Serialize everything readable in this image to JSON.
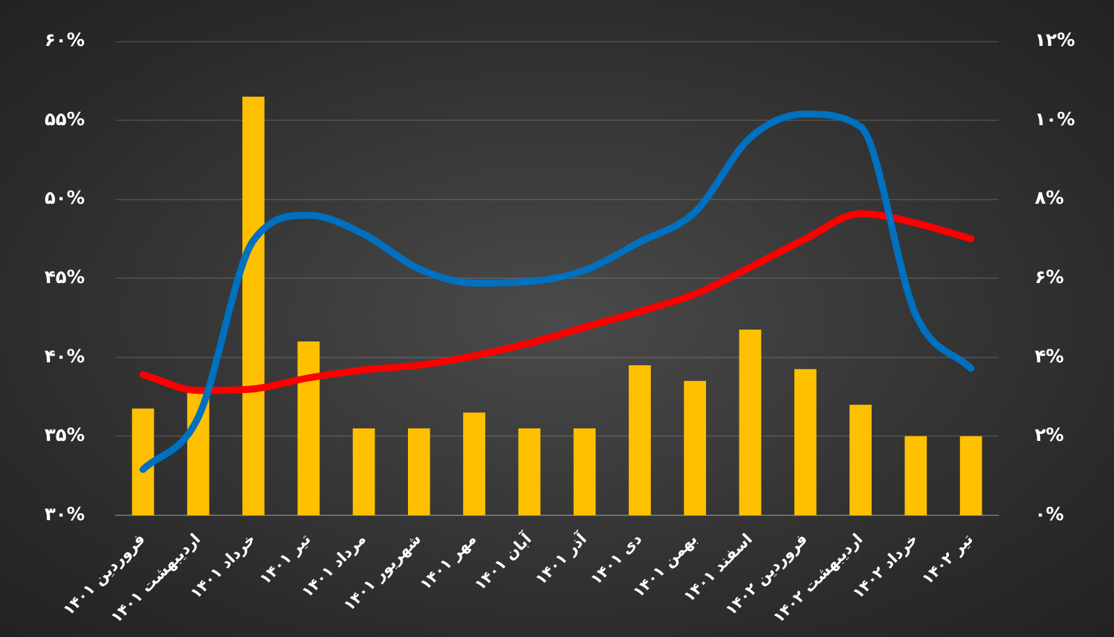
{
  "chart_data": {
    "type": "bar",
    "categories": [
      "فروردین ۱۴۰۱",
      "اردیبهشت ۱۴۰۱",
      "خرداد ۱۴۰۱",
      "تیر ۱۴۰۱",
      "مرداد ۱۴۰۱",
      "شهریور ۱۴۰۱",
      "مهر ۱۴۰۱",
      "آبان ۱۴۰۱",
      "آذر ۱۴۰۱",
      "دی ۱۴۰۱",
      "بهمن ۱۴۰۱",
      "اسفند ۱۴۰۱",
      "فروردین ۱۴۰۲",
      "اردیبهشت ۱۴۰۲",
      "خرداد ۱۴۰۲",
      "تیر ۱۴۰۲"
    ],
    "series": [
      {
        "axis": "y2",
        "color": "#ffc000",
        "values": [
          2.7,
          3.1,
          10.6,
          4.4,
          2.2,
          2.2,
          2.6,
          2.2,
          2.2,
          3.8,
          3.4,
          4.7,
          3.7,
          2.8,
          2.0,
          2.0
        ]
      },
      {
        "type": "line",
        "color": "#0070c0",
        "values": [
          32.9,
          36.2,
          47.4,
          49.0,
          47.8,
          45.6,
          44.7,
          44.8,
          45.5,
          47.3,
          49.2,
          53.9,
          55.4,
          54.6,
          42.7,
          39.3
        ]
      },
      {
        "type": "line",
        "color": "#ff0000",
        "values": [
          38.9,
          37.9,
          38.0,
          38.7,
          39.2,
          39.5,
          40.1,
          40.9,
          41.9,
          42.9,
          44.0,
          45.7,
          47.5,
          49.1,
          48.5,
          47.5
        ]
      }
    ],
    "ylim": [
      30,
      60
    ],
    "yticks": [
      {
        "value": 30,
        "label": "۳۰%"
      },
      {
        "value": 35,
        "label": "۳۵%"
      },
      {
        "value": 40,
        "label": "۴۰%"
      },
      {
        "value": 45,
        "label": "۴۵%"
      },
      {
        "value": 50,
        "label": "۵۰%"
      },
      {
        "value": 55,
        "label": "۵۵%"
      },
      {
        "value": 60,
        "label": "۶۰%"
      }
    ],
    "y2lim": [
      0,
      12
    ],
    "y2ticks": [
      {
        "value": 0,
        "label": "۰%"
      },
      {
        "value": 2,
        "label": "۲%"
      },
      {
        "value": 4,
        "label": "۴%"
      },
      {
        "value": 6,
        "label": "۶%"
      },
      {
        "value": 8,
        "label": "۸%"
      },
      {
        "value": 10,
        "label": "۱۰%"
      },
      {
        "value": 12,
        "label": "۱۲%"
      }
    ],
    "grid": "y",
    "marker": "none"
  }
}
